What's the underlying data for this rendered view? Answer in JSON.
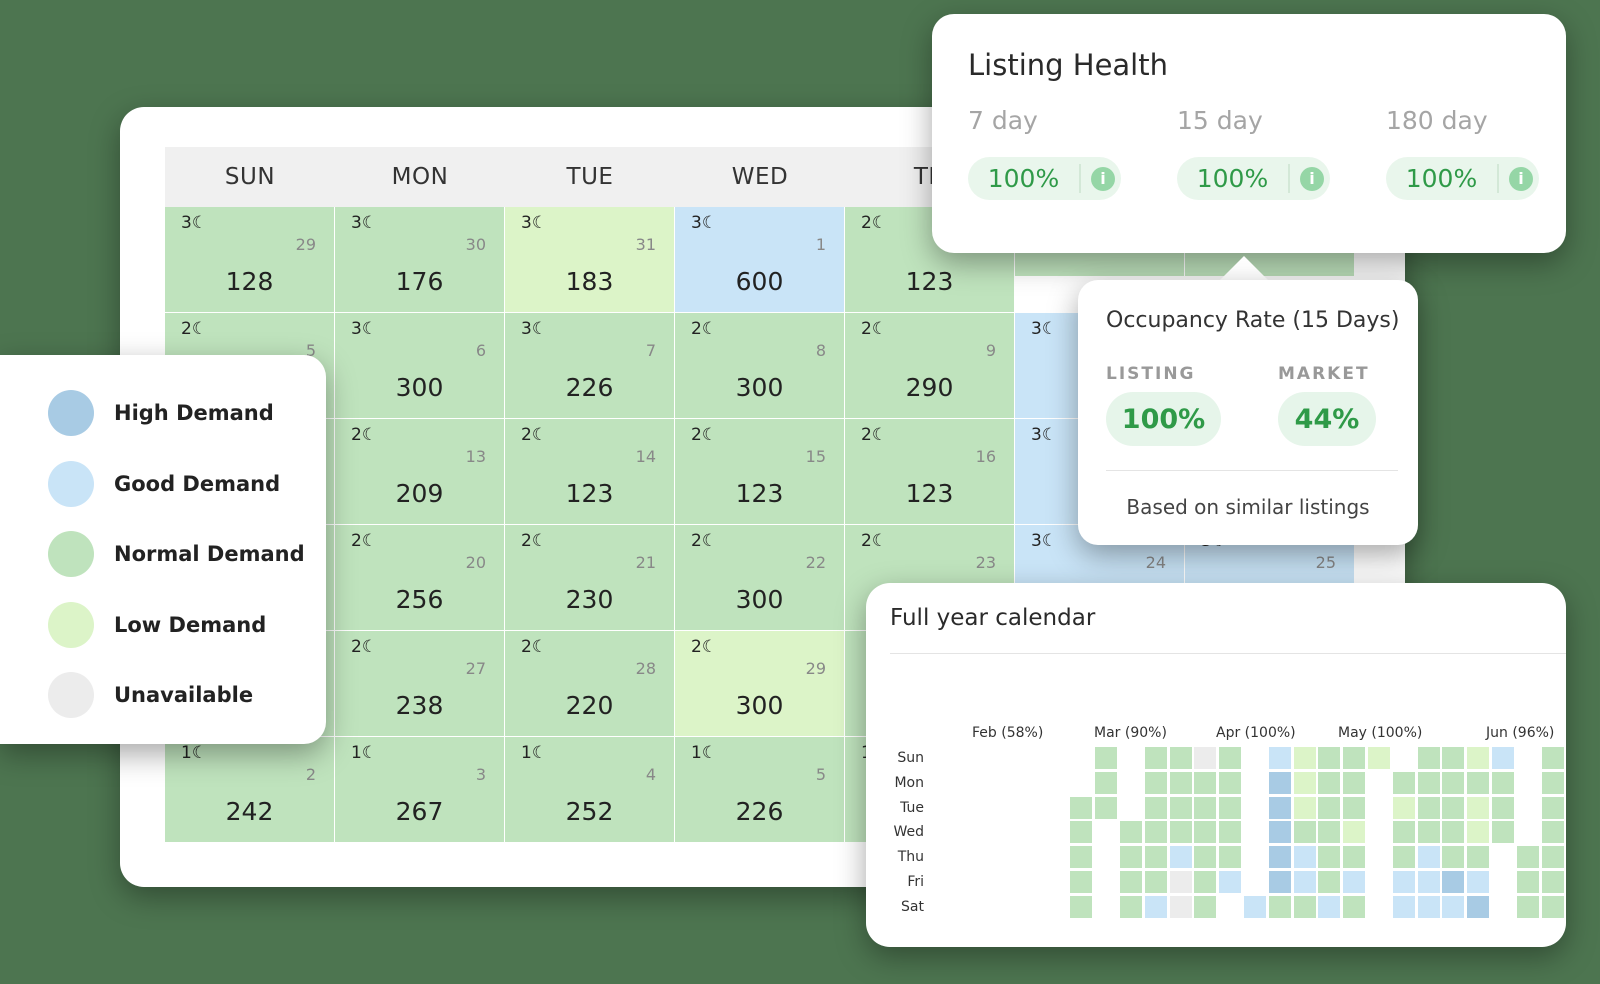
{
  "weekdays": [
    "SUN",
    "MON",
    "TUE",
    "WED",
    "TH"
  ],
  "calendar_rows": [
    [
      {
        "n": "3",
        "d": "29",
        "p": "128",
        "s": "normal"
      },
      {
        "n": "3",
        "d": "30",
        "p": "176",
        "s": "normal"
      },
      {
        "n": "3",
        "d": "31",
        "p": "183",
        "s": "low"
      },
      {
        "n": "3",
        "d": "1",
        "p": "600",
        "s": "good"
      },
      {
        "n": "2",
        "d": "",
        "p": "123",
        "s": "normal"
      }
    ],
    [
      {
        "n": "2",
        "d": "5",
        "p": "",
        "s": "normal"
      },
      {
        "n": "3",
        "d": "6",
        "p": "300",
        "s": "normal"
      },
      {
        "n": "3",
        "d": "7",
        "p": "226",
        "s": "normal"
      },
      {
        "n": "2",
        "d": "8",
        "p": "300",
        "s": "normal"
      },
      {
        "n": "2",
        "d": "9",
        "p": "290",
        "s": "normal"
      }
    ],
    [
      {
        "n": "",
        "d": "",
        "p": "",
        "s": "normal"
      },
      {
        "n": "2",
        "d": "13",
        "p": "209",
        "s": "normal"
      },
      {
        "n": "2",
        "d": "14",
        "p": "123",
        "s": "normal"
      },
      {
        "n": "2",
        "d": "15",
        "p": "123",
        "s": "normal"
      },
      {
        "n": "2",
        "d": "16",
        "p": "123",
        "s": "normal"
      }
    ],
    [
      {
        "n": "",
        "d": "",
        "p": "",
        "s": "normal"
      },
      {
        "n": "2",
        "d": "20",
        "p": "256",
        "s": "normal"
      },
      {
        "n": "2",
        "d": "21",
        "p": "230",
        "s": "normal"
      },
      {
        "n": "2",
        "d": "22",
        "p": "300",
        "s": "normal"
      },
      {
        "n": "2",
        "d": "23",
        "p": "",
        "s": "normal"
      }
    ],
    [
      {
        "n": "",
        "d": "",
        "p": "",
        "s": "normal"
      },
      {
        "n": "2",
        "d": "27",
        "p": "238",
        "s": "normal"
      },
      {
        "n": "2",
        "d": "28",
        "p": "220",
        "s": "normal"
      },
      {
        "n": "2",
        "d": "29",
        "p": "300",
        "s": "low"
      },
      {
        "n": "",
        "d": "",
        "p": "",
        "s": "normal"
      }
    ],
    [
      {
        "n": "1",
        "d": "2",
        "p": "242",
        "s": "normal"
      },
      {
        "n": "1",
        "d": "3",
        "p": "267",
        "s": "normal"
      },
      {
        "n": "1",
        "d": "4",
        "p": "252",
        "s": "normal"
      },
      {
        "n": "1",
        "d": "5",
        "p": "226",
        "s": "normal"
      },
      {
        "n": "1",
        "d": "",
        "p": "",
        "s": "normal"
      }
    ]
  ],
  "extra_cells": [
    {
      "n": "3",
      "d": "",
      "s": "good"
    },
    {
      "n": "3",
      "d": "",
      "s": "good"
    },
    {
      "n": "3",
      "d": "24",
      "s": "good"
    },
    {
      "n": "3",
      "d": "25",
      "s": "good"
    }
  ],
  "legend": [
    {
      "label": "High Demand",
      "color": "#a8cbe4"
    },
    {
      "label": "Good Demand",
      "color": "#c9e4f7"
    },
    {
      "label": "Normal Demand",
      "color": "#bfe3bd"
    },
    {
      "label": "Low Demand",
      "color": "#dcf4c8"
    },
    {
      "label": "Unavailable",
      "color": "#ececec"
    }
  ],
  "health": {
    "title": "Listing Health",
    "periods": [
      {
        "label": "7 day",
        "value": "100%"
      },
      {
        "label": "15 day",
        "value": "100%"
      },
      {
        "label": "180 day",
        "value": "100%"
      }
    ]
  },
  "occupancy": {
    "title": "Occupancy Rate (15 Days)",
    "listing_label": "LISTING",
    "listing_value": "100%",
    "market_label": "MARKET",
    "market_value": "44%",
    "footer": "Based on similar listings"
  },
  "year": {
    "title": "Full year calendar",
    "months": [
      "Feb (58%)",
      "Mar (90%)",
      "Apr (100%)",
      "May (100%)",
      "Jun (96%)"
    ],
    "days": [
      "Sun",
      "Mon",
      "Tue",
      "Wed",
      "Thu",
      "Fri",
      "Sat"
    ],
    "grid": [
      "....N.NNUN.GLNNL.NNLG.NNNN",
      "....N.NNNN.HLNN.NNNNN.NNNN",
      "...NN.NNNN.HLNN.LNNLN.NNNN",
      "...N.NNNNN.HNNL.NNNLN.NNNN",
      "...N.NNGNN.HGNN.NGNN.NNGGN",
      "...N.NNUNG.HGNG.GGHG.NNNHU",
      "...N.NGUN.GNNGN.GGGH.NNNG."
    ]
  },
  "colors": {
    "N": "#bfe3bd",
    "L": "#dcf4c8",
    "G": "#c9e4f7",
    "H": "#a8cbe4",
    "U": "#ececec"
  }
}
